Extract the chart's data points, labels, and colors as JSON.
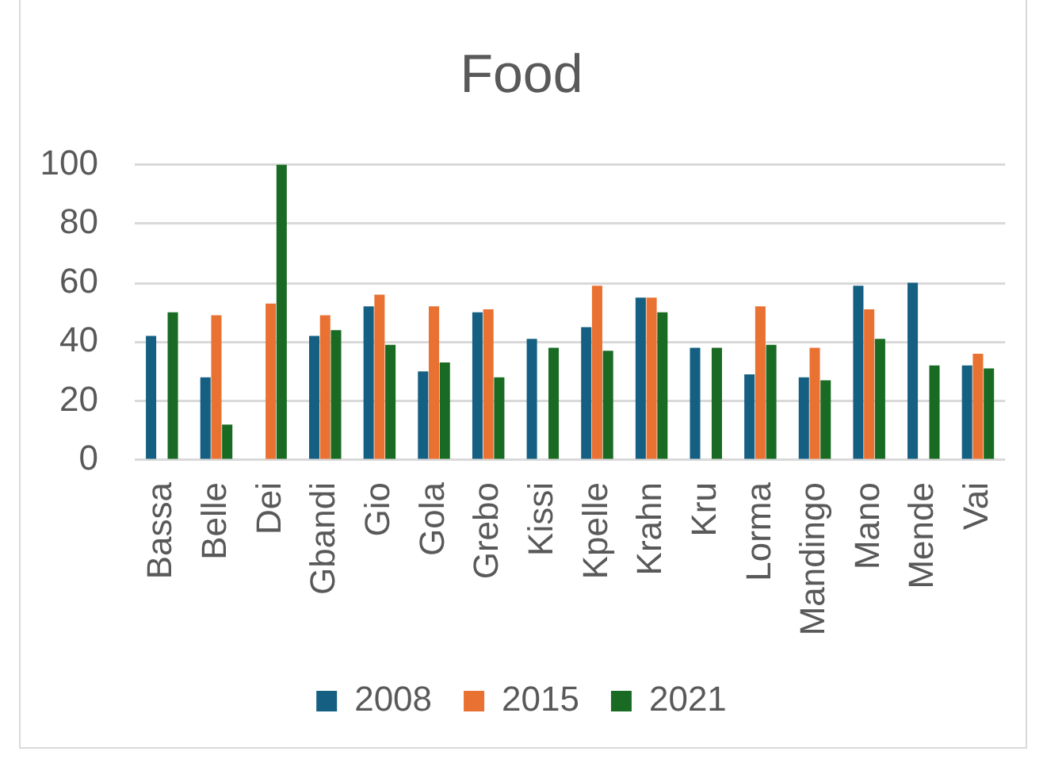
{
  "chart_data": {
    "type": "bar",
    "title": "Food",
    "categories": [
      "Bassa",
      "Belle",
      "Dei",
      "Gbandi",
      "Gio",
      "Gola",
      "Grebo",
      "Kissi",
      "Kpelle",
      "Krahn",
      "Kru",
      "Lorma",
      "Mandingo",
      "Mano",
      "Mende",
      "Vai"
    ],
    "series": [
      {
        "name": "2008",
        "color": "#156082",
        "values": [
          42,
          28,
          null,
          42,
          52,
          30,
          50,
          41,
          45,
          55,
          38,
          29,
          28,
          59,
          60,
          32
        ]
      },
      {
        "name": "2015",
        "color": "#e97132",
        "values": [
          null,
          49,
          53,
          49,
          56,
          52,
          51,
          null,
          59,
          55,
          null,
          52,
          38,
          51,
          null,
          36
        ]
      },
      {
        "name": "2021",
        "color": "#196b24",
        "values": [
          50,
          12,
          100,
          44,
          39,
          33,
          28,
          38,
          37,
          50,
          38,
          39,
          27,
          41,
          32,
          31
        ]
      }
    ],
    "ylim": [
      0,
      100
    ],
    "yticks": [
      0,
      20,
      40,
      60,
      80,
      100
    ],
    "grid": "y",
    "legend": "bottom"
  }
}
